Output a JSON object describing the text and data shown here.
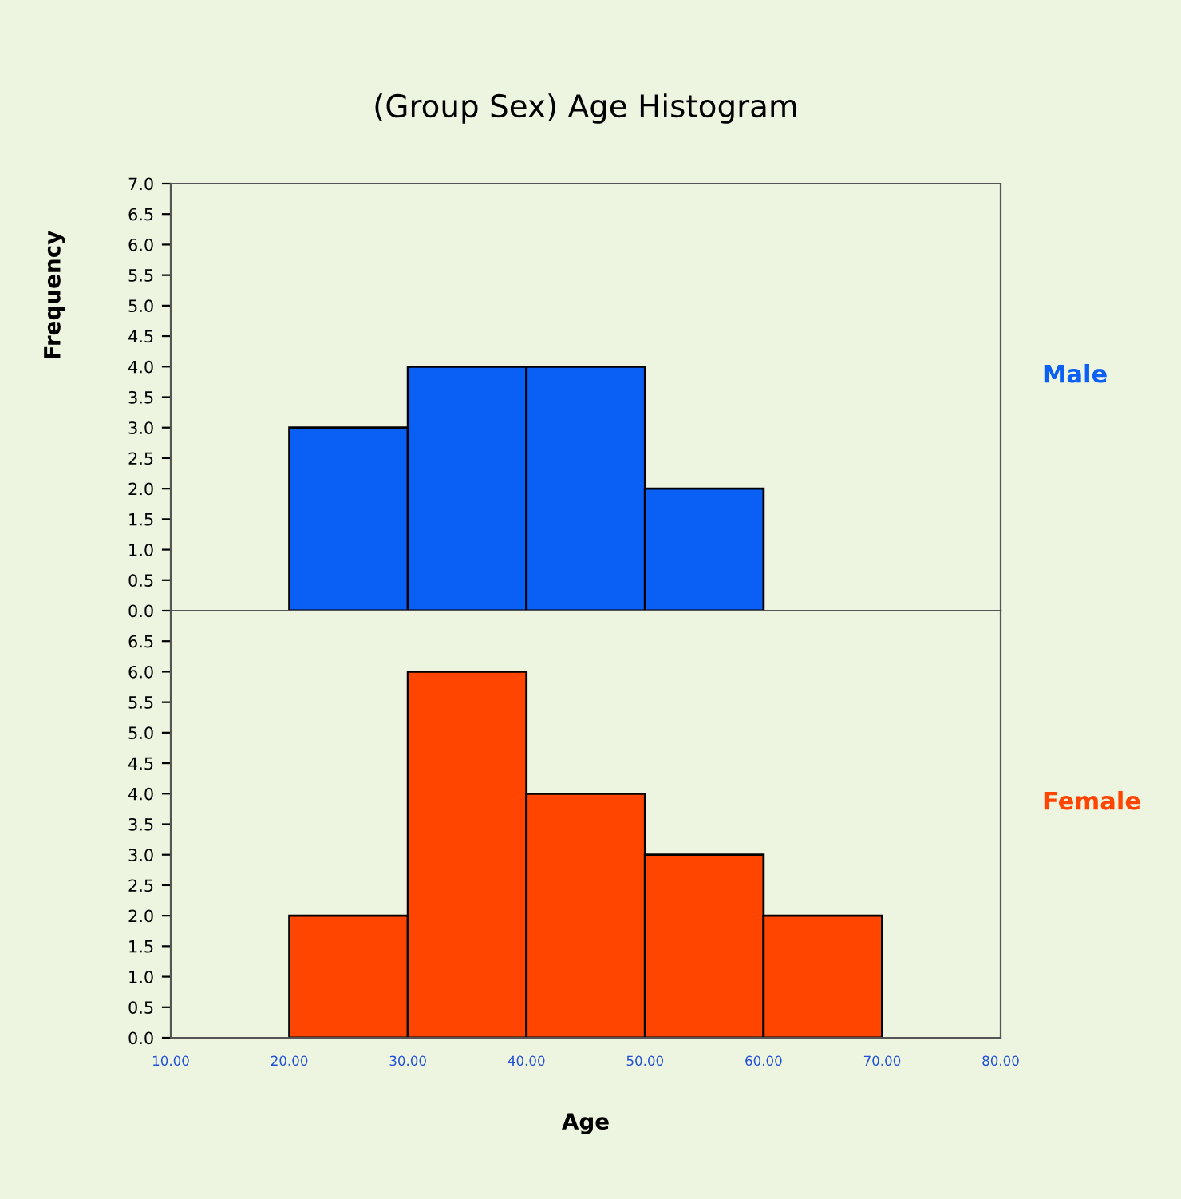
{
  "chart_data": [
    {
      "type": "histogram",
      "title": "(Group Sex) Age Histogram",
      "ylabel": "Frequency",
      "bins": [
        20,
        30,
        40,
        50,
        60
      ],
      "series": [
        {
          "name": "Male",
          "color": "#0a5ff5",
          "values": [
            3,
            4,
            4,
            2
          ]
        }
      ],
      "xlim": [
        10,
        80
      ],
      "ylim": [
        0,
        7
      ],
      "yticks": [
        {
          "value": 0,
          "label": "0.0"
        },
        {
          "value": 0.5,
          "label": "0.5"
        },
        {
          "value": 1,
          "label": "1.0"
        },
        {
          "value": 1.5,
          "label": "1.5"
        },
        {
          "value": 2,
          "label": "2.0"
        },
        {
          "value": 2.5,
          "label": "2.5"
        },
        {
          "value": 3,
          "label": "3.0"
        },
        {
          "value": 3.5,
          "label": "3.5"
        },
        {
          "value": 4,
          "label": "4.0"
        },
        {
          "value": 4.5,
          "label": "4.5"
        },
        {
          "value": 5,
          "label": "5.0"
        },
        {
          "value": 5.5,
          "label": "5.5"
        },
        {
          "value": 6,
          "label": "6.0"
        },
        {
          "value": 6.5,
          "label": "6.5"
        },
        {
          "value": 7,
          "label": "7.0"
        }
      ],
      "tick_labels": "y",
      "grid": false,
      "legend": false
    },
    {
      "type": "histogram",
      "xlabel": "Age",
      "bins": [
        20,
        30,
        40,
        50,
        60,
        70
      ],
      "series": [
        {
          "name": "Female",
          "color": "#ff4500",
          "values": [
            2,
            6,
            4,
            3,
            2
          ]
        }
      ],
      "xlim": [
        10,
        80
      ],
      "xticks": [
        {
          "value": 10,
          "label": "10.00"
        },
        {
          "value": 20,
          "label": "20.00"
        },
        {
          "value": 30,
          "label": "30.00"
        },
        {
          "value": 40,
          "label": "40.00"
        },
        {
          "value": 50,
          "label": "50.00"
        },
        {
          "value": 60,
          "label": "60.00"
        },
        {
          "value": 70,
          "label": "70.00"
        },
        {
          "value": 80,
          "label": "80.00"
        }
      ],
      "ylim": [
        0,
        7
      ],
      "yticks": [
        {
          "value": 0,
          "label": "0.0"
        },
        {
          "value": 0.5,
          "label": "0.5"
        },
        {
          "value": 1,
          "label": "1.0"
        },
        {
          "value": 1.5,
          "label": "1.5"
        },
        {
          "value": 2,
          "label": "2.0"
        },
        {
          "value": 2.5,
          "label": "2.5"
        },
        {
          "value": 3,
          "label": "3.0"
        },
        {
          "value": 3.5,
          "label": "3.5"
        },
        {
          "value": 4,
          "label": "4.0"
        },
        {
          "value": 4.5,
          "label": "4.5"
        },
        {
          "value": 5,
          "label": "5.0"
        },
        {
          "value": 5.5,
          "label": "5.5"
        },
        {
          "value": 6,
          "label": "6.0"
        },
        {
          "value": 6.5,
          "label": "6.5"
        }
      ],
      "grid": false,
      "legend": false
    }
  ]
}
